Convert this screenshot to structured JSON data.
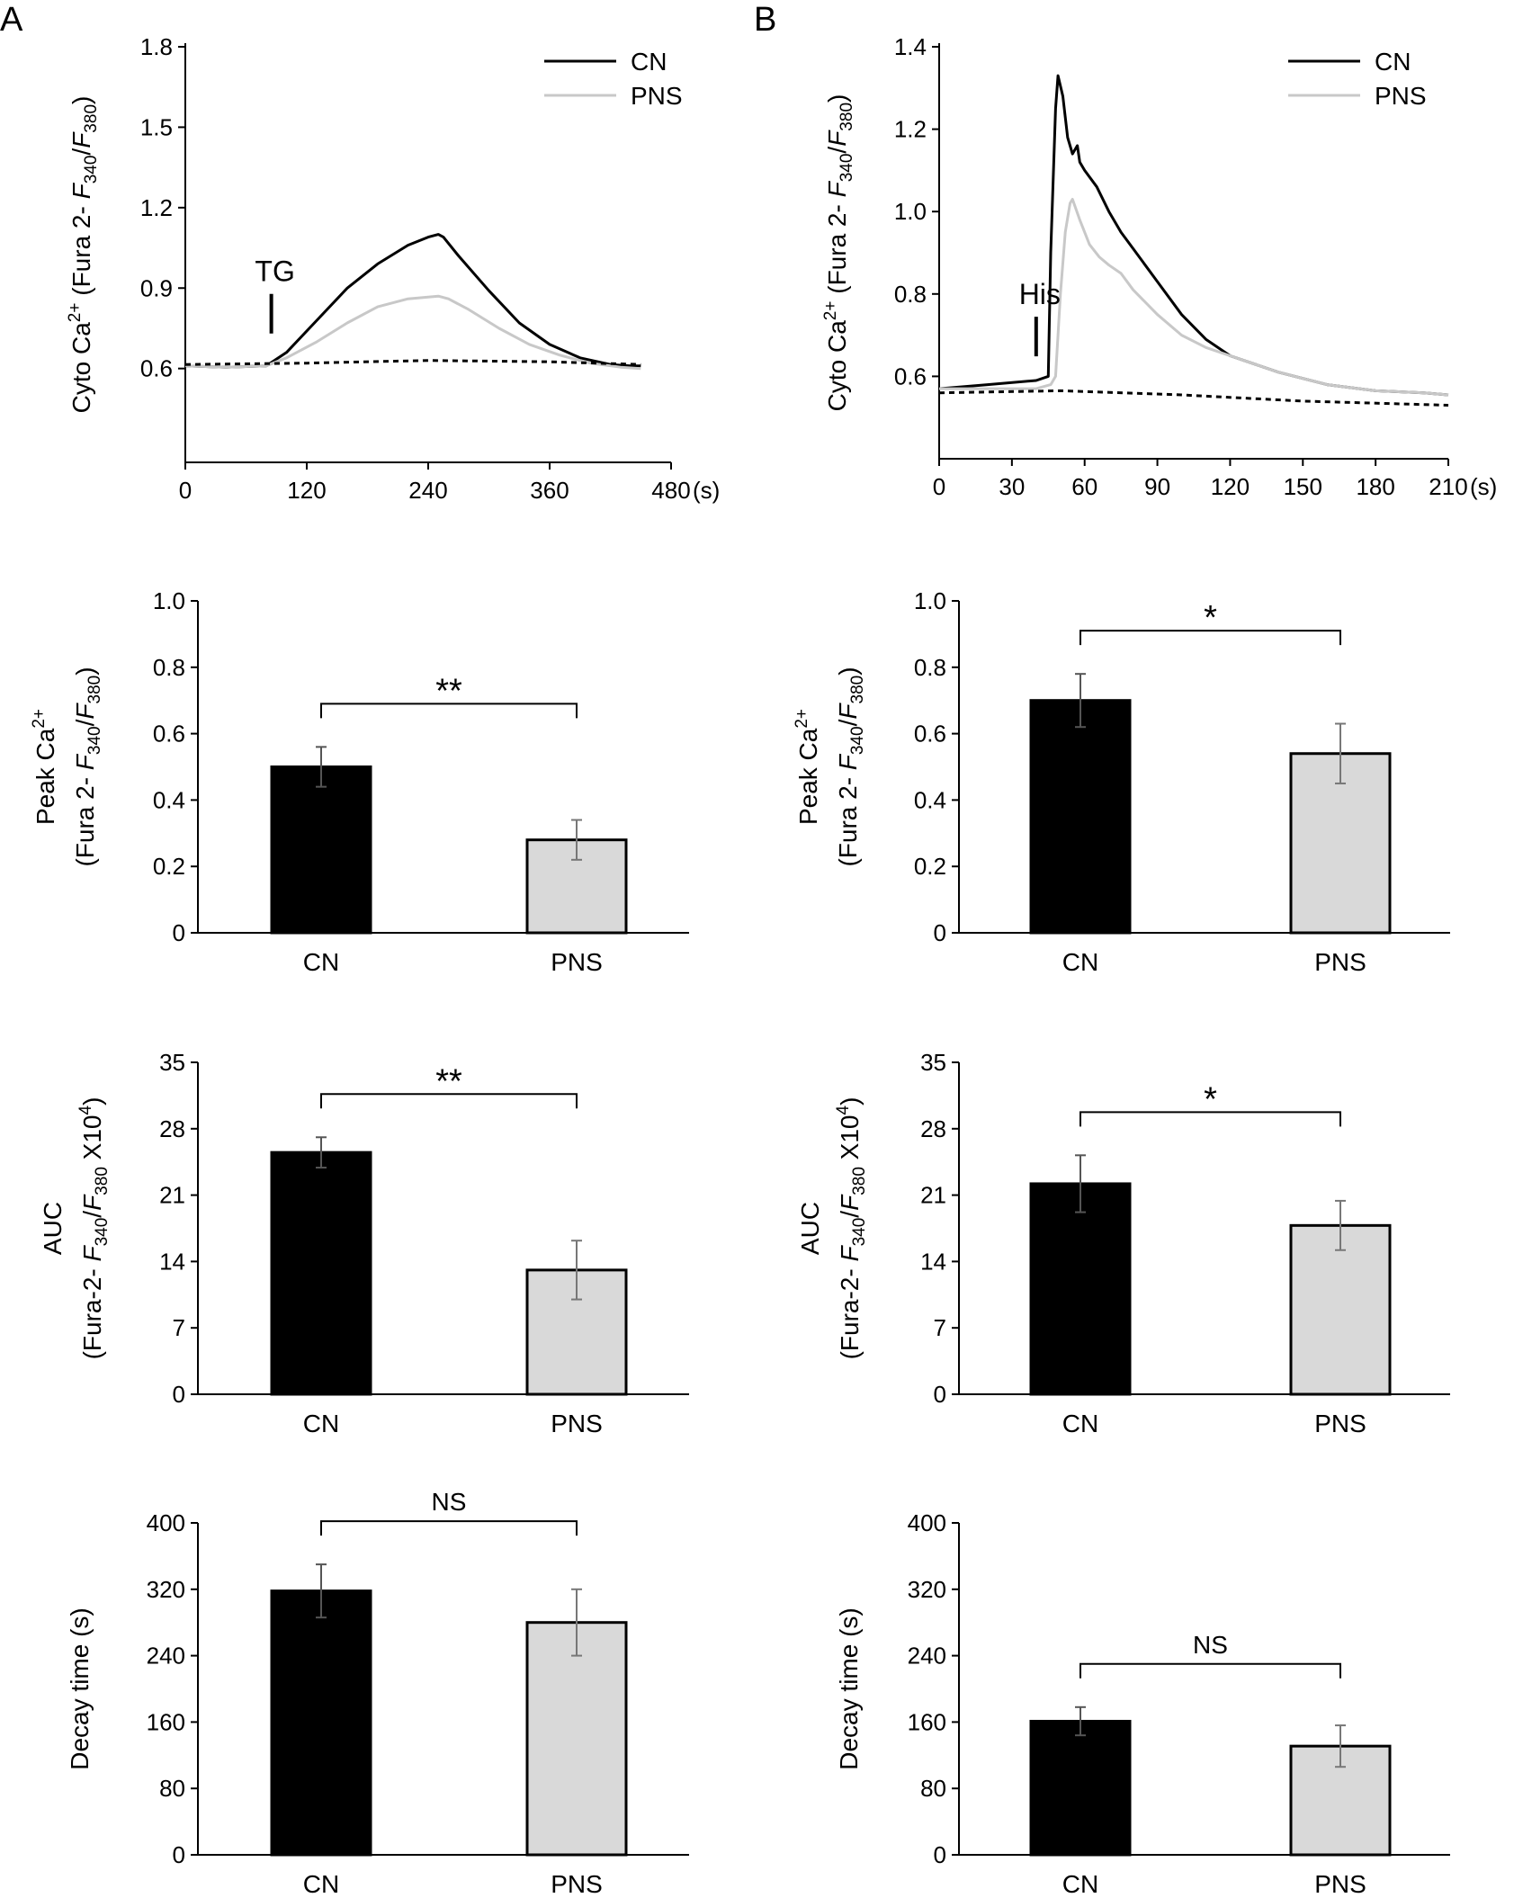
{
  "figure": {
    "panel_a": "A",
    "panel_b": "B",
    "legend": {
      "cn": "CN",
      "pns": "PNS"
    },
    "colors": {
      "cn": "#000000",
      "pns": "#c8c8c8",
      "pns_bar": "#d9d9d9",
      "baseline": "#000000"
    }
  },
  "chart_data": [
    {
      "type": "line",
      "id": "A-trace",
      "ylabel": "Cyto Ca2+ (Fura 2- F340/F380)",
      "xunit": "(s)",
      "xlim": [
        0,
        480
      ],
      "ylim": [
        0.25,
        1.8
      ],
      "xticks": [
        0,
        120,
        240,
        360,
        480
      ],
      "yticks": [
        0.6,
        0.9,
        1.2,
        1.5,
        1.8
      ],
      "ytick_labels": [
        "0.6",
        "0.9",
        "1.2",
        "1.5",
        "1.8"
      ],
      "annotation": {
        "text": "TG",
        "x": 85
      },
      "series": [
        {
          "name": "CN",
          "x": [
            0,
            40,
            80,
            100,
            130,
            160,
            190,
            220,
            240,
            250,
            255,
            270,
            300,
            330,
            360,
            390,
            420,
            440,
            450
          ],
          "y": [
            0.61,
            0.605,
            0.61,
            0.66,
            0.78,
            0.9,
            0.99,
            1.06,
            1.09,
            1.1,
            1.09,
            1.02,
            0.89,
            0.77,
            0.69,
            0.64,
            0.615,
            0.61,
            0.61
          ]
        },
        {
          "name": "PNS",
          "x": [
            0,
            40,
            80,
            100,
            130,
            160,
            190,
            220,
            250,
            260,
            280,
            310,
            340,
            370,
            400,
            430,
            450
          ],
          "y": [
            0.61,
            0.605,
            0.61,
            0.64,
            0.7,
            0.77,
            0.83,
            0.86,
            0.87,
            0.86,
            0.82,
            0.75,
            0.69,
            0.65,
            0.62,
            0.605,
            0.6
          ]
        },
        {
          "name": "baseline",
          "x": [
            0,
            120,
            240,
            360,
            450
          ],
          "y": [
            0.615,
            0.62,
            0.63,
            0.625,
            0.615
          ]
        }
      ]
    },
    {
      "type": "line",
      "id": "B-trace",
      "ylabel": "Cyto Ca2+ (Fura 2- F340/F380)",
      "xunit": "(s)",
      "xlim": [
        0,
        210
      ],
      "ylim": [
        0.4,
        1.4
      ],
      "xticks": [
        0,
        30,
        60,
        90,
        120,
        150,
        180,
        210
      ],
      "yticks": [
        0.6,
        0.8,
        1.0,
        1.2,
        1.4
      ],
      "ytick_labels": [
        "0.6",
        "0.8",
        "1.0",
        "1.2",
        "1.4"
      ],
      "annotation": {
        "text": "His",
        "x": 40
      },
      "series": [
        {
          "name": "CN",
          "x": [
            0,
            20,
            40,
            45,
            46,
            48,
            49,
            51,
            53,
            55,
            57,
            58,
            60,
            65,
            70,
            75,
            80,
            90,
            100,
            110,
            120,
            140,
            160,
            180,
            200,
            210
          ],
          "y": [
            0.57,
            0.58,
            0.59,
            0.6,
            0.9,
            1.25,
            1.33,
            1.28,
            1.18,
            1.14,
            1.16,
            1.12,
            1.1,
            1.06,
            1.0,
            0.95,
            0.91,
            0.83,
            0.75,
            0.69,
            0.65,
            0.61,
            0.58,
            0.565,
            0.56,
            0.555
          ]
        },
        {
          "name": "PNS",
          "x": [
            0,
            20,
            40,
            46,
            48,
            50,
            52,
            54,
            55,
            58,
            62,
            66,
            70,
            75,
            80,
            90,
            100,
            110,
            120,
            140,
            160,
            180,
            200,
            210
          ],
          "y": [
            0.57,
            0.57,
            0.57,
            0.58,
            0.6,
            0.8,
            0.95,
            1.02,
            1.03,
            0.98,
            0.92,
            0.89,
            0.87,
            0.85,
            0.81,
            0.75,
            0.7,
            0.67,
            0.65,
            0.61,
            0.58,
            0.565,
            0.56,
            0.555
          ]
        },
        {
          "name": "baseline",
          "x": [
            0,
            50,
            100,
            150,
            210
          ],
          "y": [
            0.56,
            0.565,
            0.555,
            0.54,
            0.53
          ]
        }
      ]
    },
    {
      "type": "bar",
      "id": "A-peak",
      "ylabel": [
        "Peak Ca2+",
        "(Fura 2- F340/F380)"
      ],
      "ylim": [
        0,
        1.0
      ],
      "yticks": [
        0,
        0.2,
        0.4,
        0.6,
        0.8,
        1.0
      ],
      "ytick_labels": [
        "0",
        "0.2",
        "0.4",
        "0.6",
        "0.8",
        "1.0"
      ],
      "categories": [
        "CN",
        "PNS"
      ],
      "values": [
        0.5,
        0.28
      ],
      "errors": [
        0.06,
        0.06
      ],
      "significance": "**"
    },
    {
      "type": "bar",
      "id": "B-peak",
      "ylabel": [
        "Peak Ca2+",
        "(Fura 2- F340/F380)"
      ],
      "ylim": [
        0,
        1.0
      ],
      "yticks": [
        0,
        0.2,
        0.4,
        0.6,
        0.8,
        1.0
      ],
      "ytick_labels": [
        "0",
        "0.2",
        "0.4",
        "0.6",
        "0.8",
        "1.0"
      ],
      "categories": [
        "CN",
        "PNS"
      ],
      "values": [
        0.7,
        0.54
      ],
      "errors": [
        0.08,
        0.09
      ],
      "significance": "*"
    },
    {
      "type": "bar",
      "id": "A-auc",
      "ylabel": [
        "AUC",
        "(Fura-2- F340/F380 X104)"
      ],
      "ylim": [
        0,
        35
      ],
      "yticks": [
        0,
        7,
        14,
        21,
        28,
        35
      ],
      "ytick_labels": [
        "0",
        "7",
        "14",
        "21",
        "28",
        "35"
      ],
      "categories": [
        "CN",
        "PNS"
      ],
      "values": [
        25.5,
        13.1
      ],
      "errors": [
        1.6,
        3.1
      ],
      "significance": "**"
    },
    {
      "type": "bar",
      "id": "B-auc",
      "ylabel": [
        "AUC",
        "(Fura-2- F340/F380 X104)"
      ],
      "ylim": [
        0,
        35
      ],
      "yticks": [
        0,
        7,
        14,
        21,
        28,
        35
      ],
      "ytick_labels": [
        "0",
        "7",
        "14",
        "21",
        "28",
        "35"
      ],
      "categories": [
        "CN",
        "PNS"
      ],
      "values": [
        22.2,
        17.8
      ],
      "errors": [
        3.0,
        2.6
      ],
      "significance": "*"
    },
    {
      "type": "bar",
      "id": "A-decay",
      "ylabel": [
        "Decay time (s)"
      ],
      "ylim": [
        0,
        400
      ],
      "yticks": [
        0,
        80,
        160,
        240,
        320,
        400
      ],
      "ytick_labels": [
        "0",
        "80",
        "160",
        "240",
        "320",
        "400"
      ],
      "categories": [
        "CN",
        "PNS"
      ],
      "values": [
        318,
        280
      ],
      "errors": [
        32,
        40
      ],
      "significance": "NS"
    },
    {
      "type": "bar",
      "id": "B-decay",
      "ylabel": [
        "Decay time (s)"
      ],
      "ylim": [
        0,
        400
      ],
      "yticks": [
        0,
        80,
        160,
        240,
        320,
        400
      ],
      "ytick_labels": [
        "0",
        "80",
        "160",
        "240",
        "320",
        "400"
      ],
      "categories": [
        "CN",
        "PNS"
      ],
      "values": [
        161,
        131
      ],
      "errors": [
        17,
        25
      ],
      "significance": "NS"
    }
  ]
}
